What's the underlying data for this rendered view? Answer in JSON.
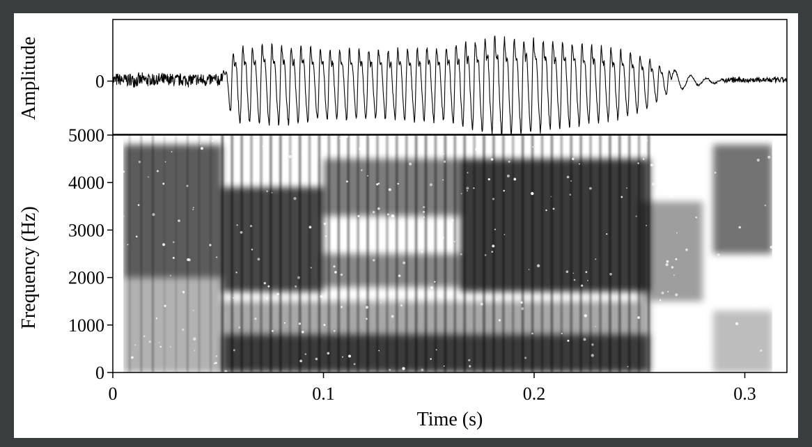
{
  "colors": {
    "frame_border": "#3a3d3e",
    "background": "#ffffff",
    "ink": "#000000"
  },
  "chart_data": [
    {
      "type": "line",
      "panel": "waveform",
      "ylabel": "Amplitude",
      "yticks": [
        {
          "value": 0,
          "label": "0"
        }
      ],
      "xlim": [
        0,
        0.32
      ],
      "ylim": [
        -1,
        1
      ],
      "signal": {
        "segments": [
          {
            "t0": 0.0,
            "t1": 0.052,
            "kind": "noise",
            "amplitude": 0.14,
            "offset": 0.02
          },
          {
            "t0": 0.052,
            "t1": 0.265,
            "kind": "voiced",
            "period": 0.0046,
            "envelope": [
              [
                0.052,
                0.18
              ],
              [
                0.056,
                0.6
              ],
              [
                0.06,
                0.8
              ],
              [
                0.08,
                0.82
              ],
              [
                0.1,
                0.74
              ],
              [
                0.13,
                0.72
              ],
              [
                0.16,
                0.78
              ],
              [
                0.17,
                0.9
              ],
              [
                0.18,
                1.0
              ],
              [
                0.195,
                0.98
              ],
              [
                0.22,
                0.86
              ],
              [
                0.24,
                0.72
              ],
              [
                0.255,
                0.5
              ],
              [
                0.265,
                0.2
              ]
            ]
          },
          {
            "t0": 0.265,
            "t1": 0.29,
            "kind": "decay",
            "period": 0.0075,
            "amplitude": 0.22
          },
          {
            "t0": 0.29,
            "t1": 0.32,
            "kind": "noise",
            "amplitude": 0.06,
            "offset": 0.02
          }
        ]
      }
    },
    {
      "type": "heatmap",
      "panel": "spectrogram",
      "xlabel": "Time (s)",
      "ylabel": "Frequency (Hz)",
      "xlim": [
        0,
        0.32
      ],
      "ylim": [
        0,
        5000
      ],
      "xticks": [
        {
          "value": 0,
          "label": "0"
        },
        {
          "value": 0.1,
          "label": "0.1"
        },
        {
          "value": 0.2,
          "label": "0.2"
        },
        {
          "value": 0.3,
          "label": "0.3"
        }
      ],
      "yticks": [
        {
          "value": 0,
          "label": "0"
        },
        {
          "value": 1000,
          "label": "1000"
        },
        {
          "value": 2000,
          "label": "2000"
        },
        {
          "value": 3000,
          "label": "3000"
        },
        {
          "value": 4000,
          "label": "4000"
        },
        {
          "value": 5000,
          "label": "5000"
        }
      ],
      "colormap": "grayscale (dark = high energy)",
      "data_extent_time": [
        0.005,
        0.313
      ],
      "regions": [
        {
          "t0": 0.005,
          "t1": 0.052,
          "f0": 2000,
          "f1": 4800,
          "intensity": 0.75
        },
        {
          "t0": 0.005,
          "t1": 0.052,
          "f0": 0,
          "f1": 2000,
          "intensity": 0.35
        },
        {
          "t0": 0.052,
          "t1": 0.255,
          "f0": 0,
          "f1": 800,
          "intensity": 0.9
        },
        {
          "t0": 0.052,
          "t1": 0.1,
          "f0": 1700,
          "f1": 3900,
          "intensity": 0.85
        },
        {
          "t0": 0.1,
          "t1": 0.165,
          "f0": 1800,
          "f1": 2500,
          "intensity": 0.55
        },
        {
          "t0": 0.1,
          "t1": 0.165,
          "f0": 3300,
          "f1": 4500,
          "intensity": 0.6
        },
        {
          "t0": 0.165,
          "t1": 0.255,
          "f0": 1700,
          "f1": 4500,
          "intensity": 0.9
        },
        {
          "t0": 0.052,
          "t1": 0.255,
          "f0": 800,
          "f1": 1500,
          "intensity": 0.4
        },
        {
          "t0": 0.25,
          "t1": 0.28,
          "f0": 1500,
          "f1": 3600,
          "intensity": 0.45
        },
        {
          "t0": 0.285,
          "t1": 0.313,
          "f0": 2500,
          "f1": 4800,
          "intensity": 0.65
        },
        {
          "t0": 0.285,
          "t1": 0.313,
          "f0": 0,
          "f1": 1300,
          "intensity": 0.3
        }
      ],
      "voicing_period": 0.0046,
      "voicing_range": [
        0.052,
        0.255
      ]
    }
  ]
}
